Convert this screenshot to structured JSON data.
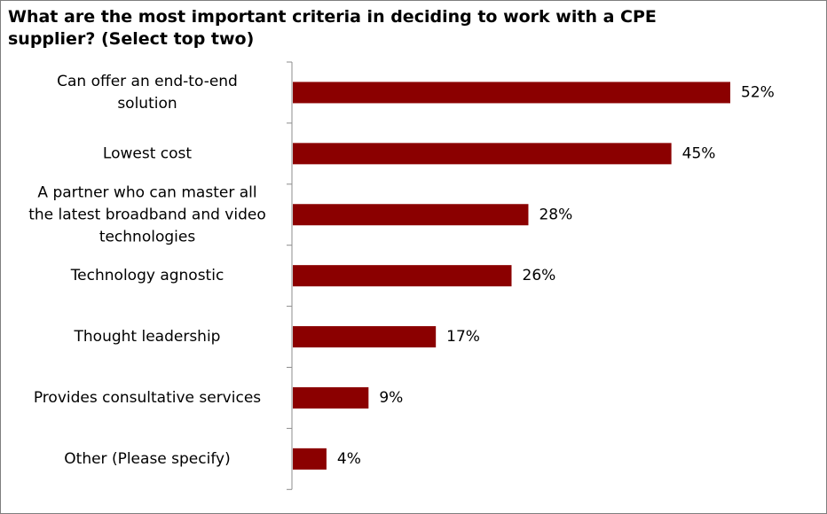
{
  "chart_data": {
    "type": "bar",
    "orientation": "horizontal",
    "title": "What are the most important criteria in deciding to work with a CPE supplier? (Select top two)",
    "categories": [
      [
        "Can offer an end-to-end",
        "solution"
      ],
      [
        "Lowest cost"
      ],
      [
        "A partner who can master all",
        "the latest broadband and video",
        "technologies"
      ],
      [
        "Technology agnostic"
      ],
      [
        "Thought leadership"
      ],
      [
        "Provides consultative services"
      ],
      [
        "Other (Please specify)"
      ]
    ],
    "values": [
      52,
      45,
      28,
      26,
      17,
      9,
      4
    ],
    "value_labels": [
      "52%",
      "45%",
      "28%",
      "26%",
      "17%",
      "9%",
      "4%"
    ],
    "unit": "%",
    "xlim": [
      0,
      60
    ],
    "bar_color": "#8B0000",
    "grid": false,
    "legend": "none"
  }
}
